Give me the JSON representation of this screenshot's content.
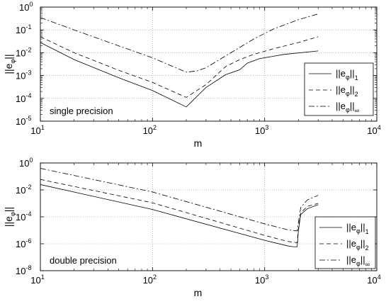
{
  "chart_data": [
    {
      "type": "line",
      "xscale": "log",
      "yscale": "log",
      "xlim": [
        10,
        10000
      ],
      "ylim": [
        1e-05,
        1
      ],
      "grid": true,
      "xlabel": "m",
      "ylabel": "||e_φ||",
      "annotation": "single precision",
      "legend_position": "right",
      "x_ticks": [
        {
          "b": "10",
          "e": "1"
        },
        {
          "b": "10",
          "e": "2"
        },
        {
          "b": "10",
          "e": "3"
        },
        {
          "b": "10",
          "e": "4"
        }
      ],
      "y_ticks": [
        {
          "b": "10",
          "e": "-5"
        },
        {
          "b": "10",
          "e": "-4"
        },
        {
          "b": "10",
          "e": "-3"
        },
        {
          "b": "10",
          "e": "-2"
        },
        {
          "b": "10",
          "e": "-1"
        },
        {
          "b": "10",
          "e": "0"
        }
      ],
      "series": [
        {
          "legend": {
            "base": "||e",
            "sub": "φ",
            "close": "||",
            "norm": "1"
          },
          "style": "solid",
          "points": [
            [
              10,
              0.028
            ],
            [
              20,
              0.005
            ],
            [
              50,
              0.0008
            ],
            [
              100,
              0.00022
            ],
            [
              200,
              4.2e-05
            ],
            [
              300,
              0.0003
            ],
            [
              450,
              0.0011
            ],
            [
              600,
              0.0018
            ],
            [
              700,
              0.0035
            ],
            [
              900,
              0.0055
            ],
            [
              1500,
              0.0085
            ],
            [
              3000,
              0.012
            ]
          ]
        },
        {
          "legend": {
            "base": "||e",
            "sub": "φ",
            "close": "||",
            "norm": "2"
          },
          "style": "dashed",
          "points": [
            [
              10,
              0.05
            ],
            [
              20,
              0.01
            ],
            [
              50,
              0.0017
            ],
            [
              100,
              0.0005
            ],
            [
              200,
              0.00011
            ],
            [
              300,
              0.0004
            ],
            [
              450,
              0.0025
            ],
            [
              600,
              0.005
            ],
            [
              800,
              0.0085
            ],
            [
              1200,
              0.015
            ],
            [
              2000,
              0.028
            ],
            [
              3000,
              0.05
            ]
          ]
        },
        {
          "legend": {
            "base": "||e",
            "sub": "φ",
            "close": "||",
            "norm": "∞"
          },
          "style": "dashdot",
          "points": [
            [
              10,
              0.35
            ],
            [
              20,
              0.1
            ],
            [
              50,
              0.02
            ],
            [
              100,
              0.006
            ],
            [
              200,
              0.0014
            ],
            [
              250,
              0.0016
            ],
            [
              300,
              0.0022
            ],
            [
              500,
              0.01
            ],
            [
              800,
              0.04
            ],
            [
              1200,
              0.11
            ],
            [
              2000,
              0.28
            ],
            [
              3000,
              0.5
            ]
          ]
        }
      ]
    },
    {
      "type": "line",
      "xscale": "log",
      "yscale": "log",
      "xlim": [
        10,
        10000
      ],
      "ylim": [
        1e-08,
        1
      ],
      "grid": true,
      "xlabel": "m",
      "ylabel": "||e_φ||",
      "annotation": "double precision",
      "legend_position": "right",
      "x_ticks": [
        {
          "b": "10",
          "e": "1"
        },
        {
          "b": "10",
          "e": "2"
        },
        {
          "b": "10",
          "e": "3"
        },
        {
          "b": "10",
          "e": "4"
        }
      ],
      "y_ticks": [
        {
          "b": "10",
          "e": "-8"
        },
        {
          "b": "10",
          "e": "-6"
        },
        {
          "b": "10",
          "e": "-4"
        },
        {
          "b": "10",
          "e": "-2"
        },
        {
          "b": "10",
          "e": "0"
        }
      ],
      "series": [
        {
          "legend": {
            "base": "||e",
            "sub": "φ",
            "close": "||",
            "norm": "1"
          },
          "style": "solid",
          "points": [
            [
              10,
              0.025
            ],
            [
              100,
              0.00035
            ],
            [
              1000,
              1.8e-06
            ],
            [
              1600,
              7e-07
            ],
            [
              1800,
              6e-07
            ],
            [
              1950,
              6e-07
            ],
            [
              2000,
              1e-05
            ],
            [
              2100,
              0.00015
            ],
            [
              2400,
              0.0004
            ],
            [
              3000,
              0.0008
            ]
          ]
        },
        {
          "legend": {
            "base": "||e",
            "sub": "φ",
            "close": "||",
            "norm": "2"
          },
          "style": "dashed",
          "points": [
            [
              10,
              0.06
            ],
            [
              100,
              0.0011
            ],
            [
              1000,
              4.2e-06
            ],
            [
              1600,
              1.5e-06
            ],
            [
              1950,
              1.2e-06
            ],
            [
              2000,
              1.5e-05
            ],
            [
              2100,
              0.0002
            ],
            [
              2400,
              0.0006
            ],
            [
              3000,
              0.001
            ]
          ]
        },
        {
          "legend": {
            "base": "||e",
            "sub": "φ",
            "close": "||",
            "norm": "∞"
          },
          "style": "dashdot",
          "points": [
            [
              10,
              0.4
            ],
            [
              100,
              0.007
            ],
            [
              1000,
              3e-05
            ],
            [
              1600,
              1.1e-05
            ],
            [
              1950,
              9e-06
            ],
            [
              2000,
              4e-05
            ],
            [
              2100,
              0.0005
            ],
            [
              2400,
              0.0018
            ],
            [
              3000,
              0.004
            ]
          ]
        }
      ]
    }
  ]
}
